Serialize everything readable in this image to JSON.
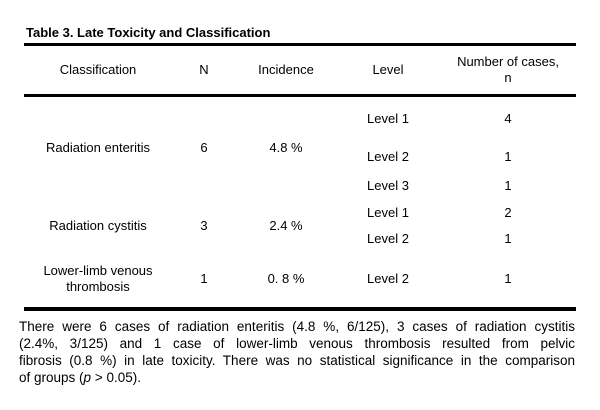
{
  "title": "Table 3. Late Toxicity and Classification",
  "table": {
    "columns": {
      "classification": "Classification",
      "n": "N",
      "incidence": "Incidence",
      "level": "Level",
      "cases_line1": "Number of cases,",
      "cases_line2": "n"
    },
    "groups": [
      {
        "classification": "Radiation enteritis",
        "n": "6",
        "incidence": "4.8 %",
        "levels": [
          {
            "level": "Level 1",
            "cases": "4"
          },
          {
            "level": "Level 2",
            "cases": "1"
          },
          {
            "level": "Level 3",
            "cases": "1"
          }
        ]
      },
      {
        "classification": "Radiation cystitis",
        "n": "3",
        "incidence": "2.4 %",
        "levels": [
          {
            "level": "Level 1",
            "cases": "2"
          },
          {
            "level": "Level 2",
            "cases": "1"
          }
        ]
      },
      {
        "classification": "Lower-limb venous thrombosis",
        "n": "1",
        "incidence": "0. 8 %",
        "levels": [
          {
            "level": "Level 2",
            "cases": "1"
          }
        ]
      }
    ]
  },
  "footnote": {
    "line1": "There were 6 cases of radiation enteritis (4.8 %, 6/125), 3 cases of radiation cystitis",
    "line2": "(2.4%, 3/125) and 1 case of lower-limb venous thrombosis resulted from pelvic",
    "line3": "fibrosis (0.8 %) in late toxicity. There was no statistical significance in the comparison",
    "line4_prefix": "of groups (",
    "line4_italic": "p",
    "line4_suffix": " > 0.05)."
  },
  "colors": {
    "background": "#ffffff",
    "text": "#000000",
    "rule": "#000000"
  }
}
